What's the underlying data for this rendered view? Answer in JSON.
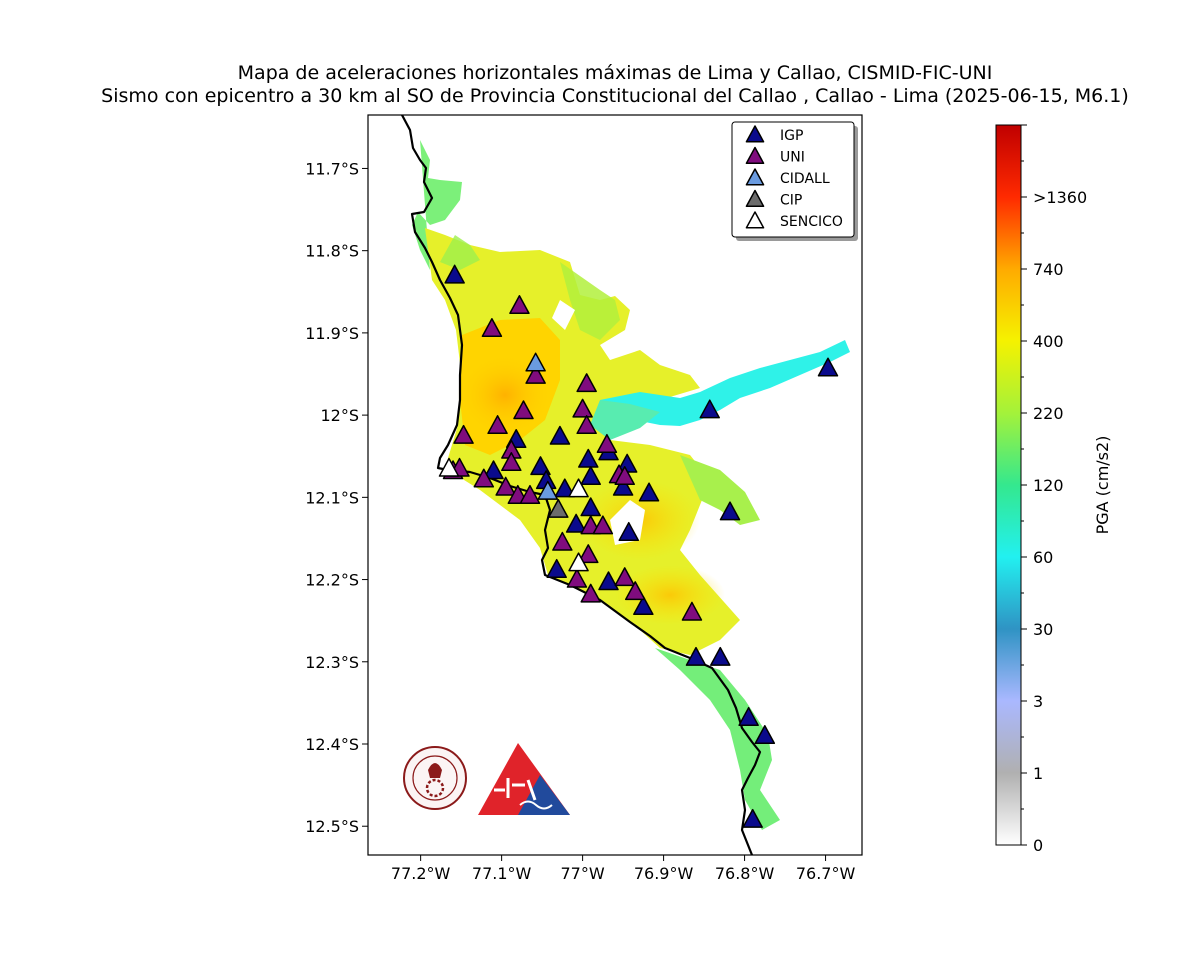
{
  "title": {
    "line1": "Mapa de aceleraciones horizontales máximas de Lima y Callao, CISMID-FIC-UNI",
    "line2": "Sismo con epicentro a 30 km al SO de Provincia Constitucional del Callao , Callao - Lima (2025-06-15, M6.1)"
  },
  "map": {
    "lon_range": [
      -77.265,
      -76.655
    ],
    "lat_range": [
      -12.535,
      -11.635
    ],
    "lat_ticks": [
      {
        "value": -11.7,
        "label": "11.7°S"
      },
      {
        "value": -11.8,
        "label": "11.8°S"
      },
      {
        "value": -11.9,
        "label": "11.9°S"
      },
      {
        "value": -12.0,
        "label": "12°S"
      },
      {
        "value": -12.1,
        "label": "12.1°S"
      },
      {
        "value": -12.2,
        "label": "12.2°S"
      },
      {
        "value": -12.3,
        "label": "12.3°S"
      },
      {
        "value": -12.4,
        "label": "12.4°S"
      },
      {
        "value": -12.5,
        "label": "12.5°S"
      }
    ],
    "lon_ticks": [
      {
        "value": -77.2,
        "label": "77.2°W"
      },
      {
        "value": -77.1,
        "label": "77.1°W"
      },
      {
        "value": -77.0,
        "label": "77°W"
      },
      {
        "value": -76.9,
        "label": "76.9°W"
      },
      {
        "value": -76.8,
        "label": "76.8°W"
      },
      {
        "value": -76.7,
        "label": "76.7°W"
      }
    ]
  },
  "legend": {
    "location": "top-right",
    "items": [
      {
        "label": "IGP",
        "color": "#0a0a8c"
      },
      {
        "label": "UNI",
        "color": "#800c7e"
      },
      {
        "label": "CIDALL",
        "color": "#6a9be0"
      },
      {
        "label": "CIP",
        "color": "#6c6c6c"
      },
      {
        "label": "SENCICO",
        "color": "#ffffff"
      }
    ]
  },
  "colorbar": {
    "label": "PGA (cm/s2)",
    "ticks": [
      "0",
      "1",
      "3",
      "30",
      "60",
      "120",
      "220",
      "400",
      "740",
      ">1360"
    ]
  },
  "stations": [
    {
      "net": "IGP",
      "lon": -77.158,
      "lat": -11.83
    },
    {
      "net": "IGP",
      "lon": -76.697,
      "lat": -11.943
    },
    {
      "net": "IGP",
      "lon": -76.843,
      "lat": -11.994
    },
    {
      "net": "IGP",
      "lon": -76.818,
      "lat": -12.118
    },
    {
      "net": "IGP",
      "lon": -77.082,
      "lat": -12.03
    },
    {
      "net": "IGP",
      "lon": -77.028,
      "lat": -12.026
    },
    {
      "net": "IGP",
      "lon": -77.11,
      "lat": -12.068
    },
    {
      "net": "IGP",
      "lon": -77.052,
      "lat": -12.063
    },
    {
      "net": "IGP",
      "lon": -77.045,
      "lat": -12.08
    },
    {
      "net": "IGP",
      "lon": -77.022,
      "lat": -12.09
    },
    {
      "net": "IGP",
      "lon": -76.993,
      "lat": -12.054
    },
    {
      "net": "IGP",
      "lon": -76.99,
      "lat": -12.075
    },
    {
      "net": "IGP",
      "lon": -76.968,
      "lat": -12.045
    },
    {
      "net": "IGP",
      "lon": -76.945,
      "lat": -12.06
    },
    {
      "net": "IGP",
      "lon": -76.95,
      "lat": -12.088
    },
    {
      "net": "IGP",
      "lon": -76.918,
      "lat": -12.095
    },
    {
      "net": "IGP",
      "lon": -76.99,
      "lat": -12.113
    },
    {
      "net": "IGP",
      "lon": -77.008,
      "lat": -12.133
    },
    {
      "net": "IGP",
      "lon": -76.943,
      "lat": -12.143
    },
    {
      "net": "IGP",
      "lon": -77.032,
      "lat": -12.188
    },
    {
      "net": "IGP",
      "lon": -76.968,
      "lat": -12.203
    },
    {
      "net": "IGP",
      "lon": -76.925,
      "lat": -12.233
    },
    {
      "net": "IGP",
      "lon": -76.86,
      "lat": -12.295
    },
    {
      "net": "IGP",
      "lon": -76.83,
      "lat": -12.295
    },
    {
      "net": "IGP",
      "lon": -76.795,
      "lat": -12.368
    },
    {
      "net": "IGP",
      "lon": -76.775,
      "lat": -12.39
    },
    {
      "net": "IGP",
      "lon": -76.79,
      "lat": -12.492
    },
    {
      "net": "UNI",
      "lon": -77.078,
      "lat": -11.867
    },
    {
      "net": "UNI",
      "lon": -77.112,
      "lat": -11.895
    },
    {
      "net": "UNI",
      "lon": -77.058,
      "lat": -11.952
    },
    {
      "net": "UNI",
      "lon": -76.995,
      "lat": -11.962
    },
    {
      "net": "UNI",
      "lon": -77.073,
      "lat": -11.995
    },
    {
      "net": "UNI",
      "lon": -77.0,
      "lat": -11.993
    },
    {
      "net": "UNI",
      "lon": -76.995,
      "lat": -12.013
    },
    {
      "net": "UNI",
      "lon": -77.105,
      "lat": -12.013
    },
    {
      "net": "UNI",
      "lon": -77.147,
      "lat": -12.025
    },
    {
      "net": "UNI",
      "lon": -77.088,
      "lat": -12.043
    },
    {
      "net": "UNI",
      "lon": -77.088,
      "lat": -12.058
    },
    {
      "net": "UNI",
      "lon": -77.16,
      "lat": -12.068
    },
    {
      "net": "UNI",
      "lon": -77.152,
      "lat": -12.065
    },
    {
      "net": "UNI",
      "lon": -77.122,
      "lat": -12.078
    },
    {
      "net": "UNI",
      "lon": -77.095,
      "lat": -12.088
    },
    {
      "net": "UNI",
      "lon": -77.08,
      "lat": -12.098
    },
    {
      "net": "UNI",
      "lon": -77.065,
      "lat": -12.098
    },
    {
      "net": "UNI",
      "lon": -76.97,
      "lat": -12.036
    },
    {
      "net": "UNI",
      "lon": -76.955,
      "lat": -12.073
    },
    {
      "net": "UNI",
      "lon": -76.948,
      "lat": -12.075
    },
    {
      "net": "UNI",
      "lon": -76.99,
      "lat": -12.135
    },
    {
      "net": "UNI",
      "lon": -76.975,
      "lat": -12.135
    },
    {
      "net": "UNI",
      "lon": -77.025,
      "lat": -12.155
    },
    {
      "net": "UNI",
      "lon": -76.993,
      "lat": -12.17
    },
    {
      "net": "UNI",
      "lon": -77.007,
      "lat": -12.2
    },
    {
      "net": "UNI",
      "lon": -76.99,
      "lat": -12.218
    },
    {
      "net": "UNI",
      "lon": -76.948,
      "lat": -12.198
    },
    {
      "net": "UNI",
      "lon": -76.935,
      "lat": -12.215
    },
    {
      "net": "UNI",
      "lon": -76.865,
      "lat": -12.24
    },
    {
      "net": "CIDALL",
      "lon": -77.058,
      "lat": -11.937
    },
    {
      "net": "CIDALL",
      "lon": -77.043,
      "lat": -12.093
    },
    {
      "net": "CIP",
      "lon": -77.03,
      "lat": -12.115
    },
    {
      "net": "SENCICO",
      "lon": -77.005,
      "lat": -12.09
    },
    {
      "net": "SENCICO",
      "lon": -77.005,
      "lat": -12.18
    },
    {
      "net": "SENCICO",
      "lon": -77.165,
      "lat": -12.065
    }
  ]
}
